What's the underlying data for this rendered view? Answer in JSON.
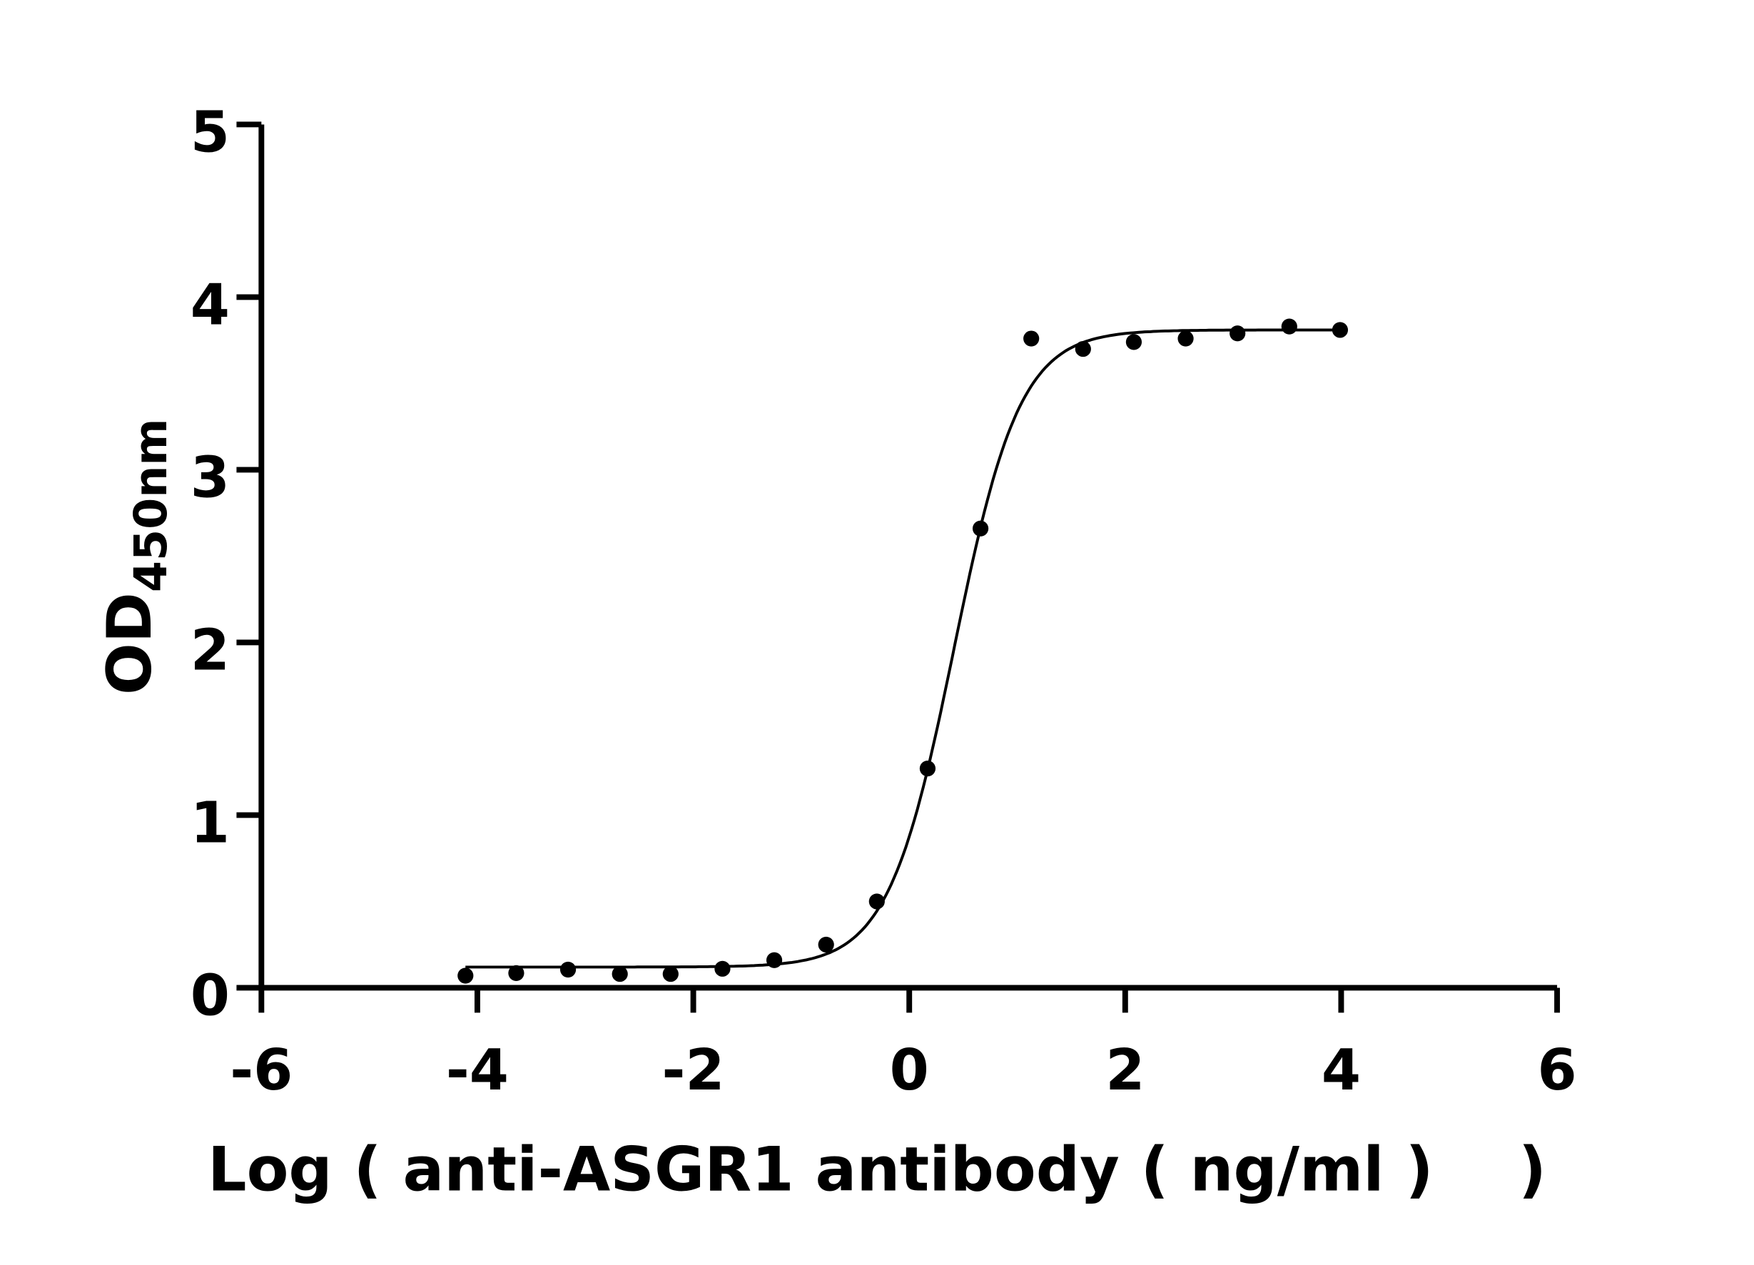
{
  "chart_data": {
    "type": "scatter",
    "title": "",
    "xlabel": "Log ( anti-ASGR1 antibody ( ng/ml )    )",
    "ylabel_main": "OD",
    "ylabel_sub": "450nm",
    "xlim": [
      -6,
      6
    ],
    "ylim": [
      0,
      5
    ],
    "xticks": [
      -6,
      -4,
      -2,
      0,
      2,
      4,
      6
    ],
    "yticks": [
      0,
      1,
      2,
      3,
      4,
      5
    ],
    "xtick_labels": [
      "-6",
      "-4",
      "-2",
      "0",
      "2",
      "4",
      "6"
    ],
    "ytick_labels": [
      "0",
      "1",
      "2",
      "3",
      "4",
      "5"
    ],
    "grid": false,
    "legend": "none",
    "points": {
      "x": [
        -4.11,
        -3.64,
        -3.16,
        -2.68,
        -2.21,
        -1.73,
        -1.25,
        -0.77,
        -0.3,
        0.17,
        0.66,
        1.13,
        1.61,
        2.08,
        2.56,
        3.04,
        3.52,
        3.99
      ],
      "y": [
        0.07,
        0.085,
        0.105,
        0.08,
        0.08,
        0.11,
        0.16,
        0.25,
        0.5,
        1.27,
        2.66,
        3.76,
        3.7,
        3.74,
        3.76,
        3.79,
        3.83,
        3.81
      ]
    },
    "fit_curve": {
      "model": "four-parameter logistic",
      "bottom": 0.12,
      "top": 3.81,
      "logEC50": 0.415,
      "hill_slope": 1.42,
      "x_range": [
        -4.11,
        3.99
      ]
    },
    "colors": {
      "marks": "#000000",
      "background": "#ffffff"
    }
  }
}
